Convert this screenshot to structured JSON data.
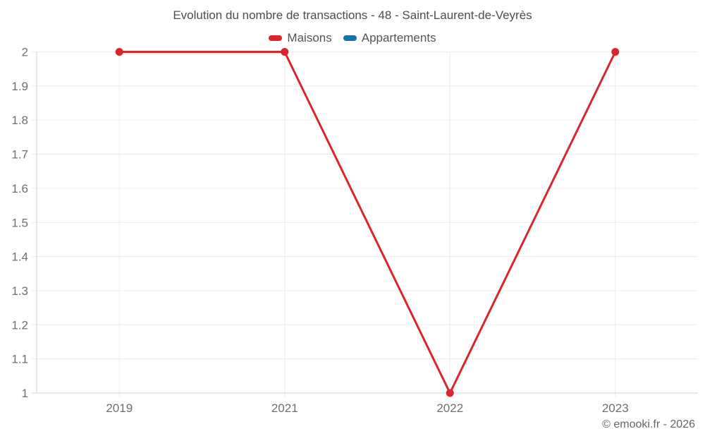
{
  "title": "Evolution du nombre de transactions - 48 - Saint-Laurent-de-Veyrès",
  "footer": {
    "copyright": "© emooki.fr - 2026"
  },
  "colors": {
    "background": "#ffffff",
    "grid": "#ececec",
    "axis": "#d2d2d2",
    "tick_text": "#6f6f6f",
    "title_text": "#4d4d4d",
    "maisons_red": "#d9262d",
    "appartements_blue": "#1272ab"
  },
  "chart_data": {
    "type": "line",
    "categories": [
      "2019",
      "2021",
      "2022",
      "2023"
    ],
    "series": [
      {
        "name": "Maisons",
        "color": "#d9262d",
        "values": [
          2,
          2,
          1,
          2
        ]
      },
      {
        "name": "Appartements",
        "color": "#1272ab",
        "values": []
      }
    ],
    "title": "Evolution du nombre de transactions - 48 - Saint-Laurent-de-Veyrès",
    "xlabel": "",
    "ylabel": "",
    "ylim": [
      1,
      2
    ],
    "ytick_step": 0.1,
    "grid": true,
    "legend_position": "top"
  }
}
